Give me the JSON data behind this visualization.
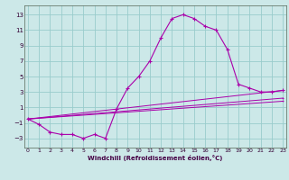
{
  "xlabel": "Windchill (Refroidissement éolien,°C)",
  "background_color": "#cce8e8",
  "grid_color": "#99cccc",
  "line_color": "#aa00aa",
  "x_ticks": [
    0,
    1,
    2,
    3,
    4,
    5,
    6,
    7,
    8,
    9,
    10,
    11,
    12,
    13,
    14,
    15,
    16,
    17,
    18,
    19,
    20,
    21,
    22,
    23
  ],
  "y_ticks": [
    -3,
    -1,
    1,
    3,
    5,
    7,
    9,
    11,
    13
  ],
  "xlim": [
    -0.3,
    23.3
  ],
  "ylim": [
    -4.2,
    14.2
  ],
  "series": [
    {
      "x": [
        0,
        1,
        2,
        3,
        4,
        5,
        6,
        7,
        8,
        9,
        10,
        11,
        12,
        13,
        14,
        15,
        16,
        17,
        18,
        19,
        20,
        21,
        22,
        23
      ],
      "y": [
        -0.5,
        -1.2,
        -2.2,
        -2.5,
        -2.5,
        -3.0,
        -2.5,
        -3.0,
        0.8,
        3.5,
        5.0,
        7.0,
        10.0,
        12.5,
        13.0,
        12.5,
        11.5,
        11.0,
        8.5,
        4.0,
        3.5,
        3.0,
        3.0,
        3.2
      ]
    },
    {
      "x": [
        0,
        23
      ],
      "y": [
        -0.5,
        1.8
      ]
    },
    {
      "x": [
        0,
        23
      ],
      "y": [
        -0.5,
        3.2
      ]
    },
    {
      "x": [
        0,
        23
      ],
      "y": [
        -0.5,
        2.2
      ]
    }
  ],
  "tick_fontsize": 4.5,
  "xlabel_fontsize": 5.0,
  "linewidth_main": 0.8,
  "linewidth_ref": 0.7,
  "marker_size": 2.5
}
